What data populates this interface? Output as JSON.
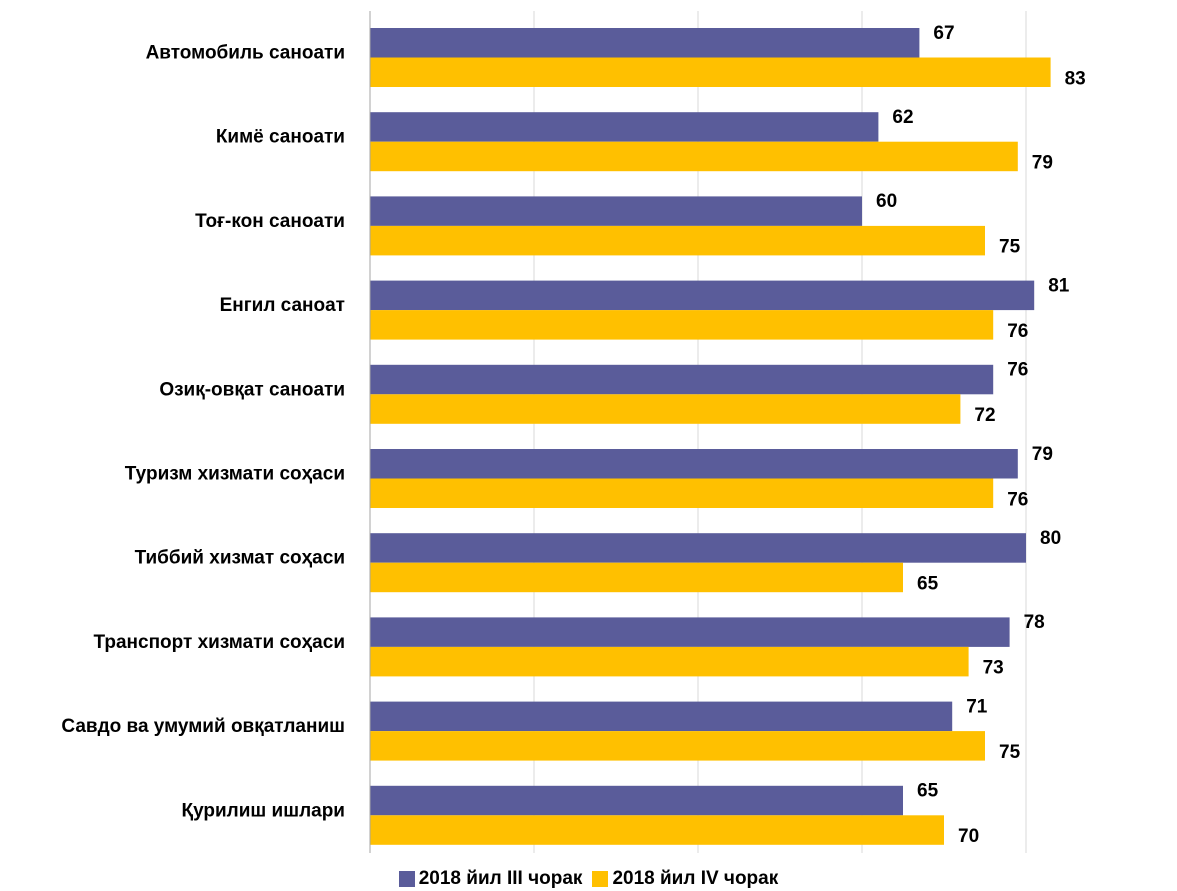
{
  "chart_data": {
    "type": "bar",
    "orientation": "horizontal",
    "categories": [
      "Автомобиль саноати",
      "Кимё саноати",
      "Тоғ-кон саноати",
      "Енгил саноат",
      "Озиқ-овқат саноати",
      "Туризм хизмати соҳаси",
      "Тиббий хизмат соҳаси",
      "Транспорт хизмати соҳаси",
      "Савдо ва умумий овқатланиш",
      "Қурилиш ишлари"
    ],
    "series": [
      {
        "name": "2018 йил III чорак",
        "color": "#5A5C9A",
        "values": [
          67,
          62,
          60,
          81,
          76,
          79,
          80,
          78,
          71,
          65
        ]
      },
      {
        "name": "2018 йил IV чорак",
        "color": "#FFC000",
        "values": [
          83,
          79,
          75,
          76,
          72,
          76,
          65,
          73,
          75,
          70
        ]
      }
    ],
    "xlim": [
      0,
      100
    ],
    "grid": "vertical",
    "data_labels": true,
    "legend": "bottom"
  }
}
